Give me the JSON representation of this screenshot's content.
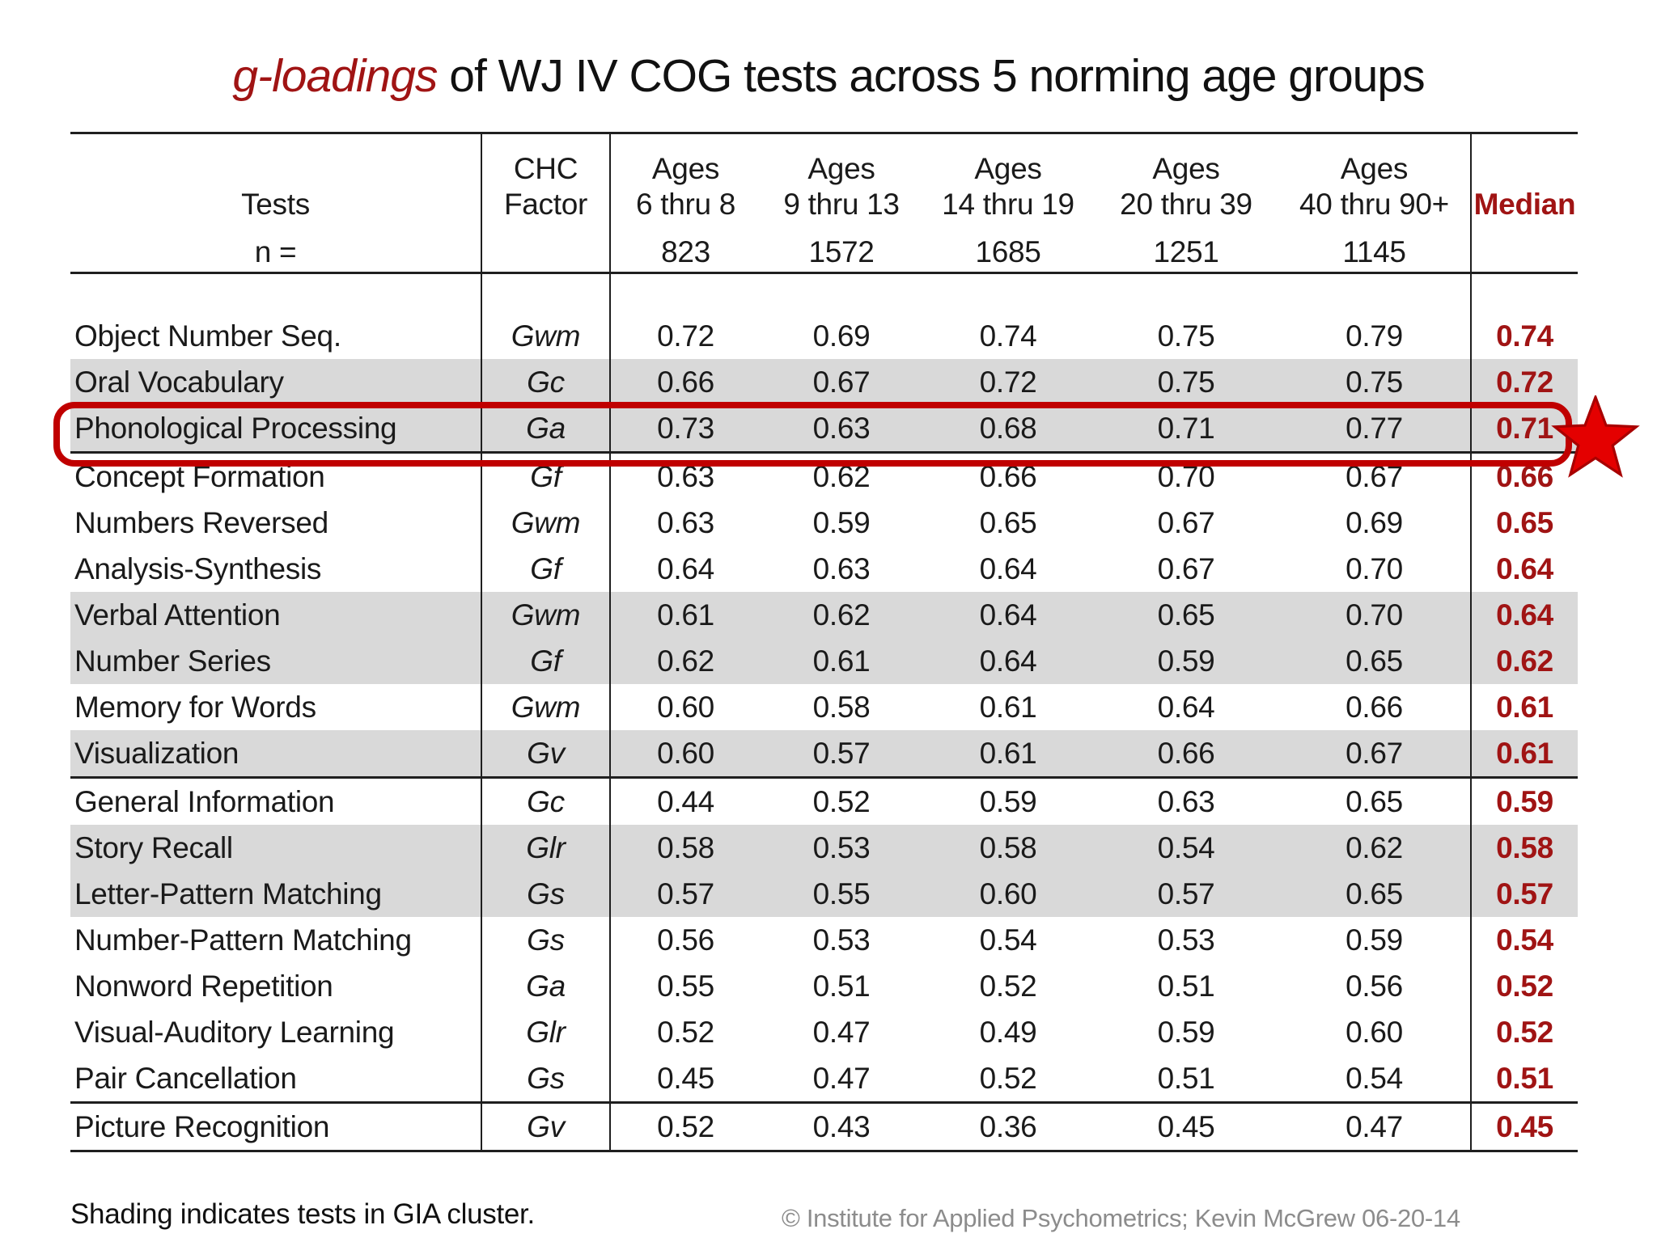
{
  "title": {
    "highlight": "g-loadings",
    "rest": " of WJ IV COG tests across 5 norming age groups"
  },
  "colors": {
    "accent_red": "#A01414",
    "box_red": "#C00000",
    "star_red": "#E40000",
    "row_shading": "#D9D9D9",
    "credit_gray": "#8C8C8C",
    "line_black": "#1F1F1F"
  },
  "table": {
    "header": {
      "tests_label": "Tests",
      "n_label": "n =",
      "chc_line1": "CHC",
      "chc_line2": "Factor",
      "age_label": "Ages",
      "age_groups": [
        {
          "range": "6 thru 8",
          "n": "823"
        },
        {
          "range": "9 thru 13",
          "n": "1572"
        },
        {
          "range": "14 thru 19",
          "n": "1685"
        },
        {
          "range": "20 thru 39",
          "n": "1251"
        },
        {
          "range": "40 thru 90+",
          "n": "1145"
        }
      ],
      "median_label": "Median"
    },
    "rows": [
      {
        "test": "Object Number Seq.",
        "factor": "Gwm",
        "values": [
          "0.72",
          "0.69",
          "0.74",
          "0.75",
          "0.79"
        ],
        "median": "0.74",
        "shaded": false,
        "highlighted": false,
        "section_end": false
      },
      {
        "test": "Oral Vocabulary",
        "factor": "Gc",
        "values": [
          "0.66",
          "0.67",
          "0.72",
          "0.75",
          "0.75"
        ],
        "median": "0.72",
        "shaded": true,
        "highlighted": false,
        "section_end": false
      },
      {
        "test": "Phonological Processing",
        "factor": "Ga",
        "values": [
          "0.73",
          "0.63",
          "0.68",
          "0.71",
          "0.77"
        ],
        "median": "0.71",
        "shaded": true,
        "highlighted": true,
        "section_end": true
      },
      {
        "test": "Concept Formation",
        "factor": "Gf",
        "values": [
          "0.63",
          "0.62",
          "0.66",
          "0.70",
          "0.67"
        ],
        "median": "0.66",
        "shaded": false,
        "highlighted": false,
        "section_end": false
      },
      {
        "test": "Numbers Reversed",
        "factor": "Gwm",
        "values": [
          "0.63",
          "0.59",
          "0.65",
          "0.67",
          "0.69"
        ],
        "median": "0.65",
        "shaded": false,
        "highlighted": false,
        "section_end": false
      },
      {
        "test": "Analysis-Synthesis",
        "factor": "Gf",
        "values": [
          "0.64",
          "0.63",
          "0.64",
          "0.67",
          "0.70"
        ],
        "median": "0.64",
        "shaded": false,
        "highlighted": false,
        "section_end": false
      },
      {
        "test": "Verbal Attention",
        "factor": "Gwm",
        "values": [
          "0.61",
          "0.62",
          "0.64",
          "0.65",
          "0.70"
        ],
        "median": "0.64",
        "shaded": true,
        "highlighted": false,
        "section_end": false
      },
      {
        "test": "Number Series",
        "factor": "Gf",
        "values": [
          "0.62",
          "0.61",
          "0.64",
          "0.59",
          "0.65"
        ],
        "median": "0.62",
        "shaded": true,
        "highlighted": false,
        "section_end": false
      },
      {
        "test": "Memory for Words",
        "factor": "Gwm",
        "values": [
          "0.60",
          "0.58",
          "0.61",
          "0.64",
          "0.66"
        ],
        "median": "0.61",
        "shaded": false,
        "highlighted": false,
        "section_end": false
      },
      {
        "test": "Visualization",
        "factor": "Gv",
        "values": [
          "0.60",
          "0.57",
          "0.61",
          "0.66",
          "0.67"
        ],
        "median": "0.61",
        "shaded": true,
        "highlighted": false,
        "section_end": true
      },
      {
        "test": "General Information",
        "factor": "Gc",
        "values": [
          "0.44",
          "0.52",
          "0.59",
          "0.63",
          "0.65"
        ],
        "median": "0.59",
        "shaded": false,
        "highlighted": false,
        "section_end": false
      },
      {
        "test": "Story Recall",
        "factor": "Glr",
        "values": [
          "0.58",
          "0.53",
          "0.58",
          "0.54",
          "0.62"
        ],
        "median": "0.58",
        "shaded": true,
        "highlighted": false,
        "section_end": false
      },
      {
        "test": "Letter-Pattern Matching",
        "factor": "Gs",
        "values": [
          "0.57",
          "0.55",
          "0.60",
          "0.57",
          "0.65"
        ],
        "median": "0.57",
        "shaded": true,
        "highlighted": false,
        "section_end": false
      },
      {
        "test": "Number-Pattern Matching",
        "factor": "Gs",
        "values": [
          "0.56",
          "0.53",
          "0.54",
          "0.53",
          "0.59"
        ],
        "median": "0.54",
        "shaded": false,
        "highlighted": false,
        "section_end": false
      },
      {
        "test": "Nonword Repetition",
        "factor": "Ga",
        "values": [
          "0.55",
          "0.51",
          "0.52",
          "0.51",
          "0.56"
        ],
        "median": "0.52",
        "shaded": false,
        "highlighted": false,
        "section_end": false
      },
      {
        "test": "Visual-Auditory Learning",
        "factor": "Glr",
        "values": [
          "0.52",
          "0.47",
          "0.49",
          "0.59",
          "0.60"
        ],
        "median": "0.52",
        "shaded": false,
        "highlighted": false,
        "section_end": false
      },
      {
        "test": "Pair Cancellation",
        "factor": "Gs",
        "values": [
          "0.45",
          "0.47",
          "0.52",
          "0.51",
          "0.54"
        ],
        "median": "0.51",
        "shaded": false,
        "highlighted": false,
        "section_end": true
      },
      {
        "test": "Picture Recognition",
        "factor": "Gv",
        "values": [
          "0.52",
          "0.43",
          "0.36",
          "0.45",
          "0.47"
        ],
        "median": "0.45",
        "shaded": false,
        "highlighted": false,
        "section_end": false
      }
    ]
  },
  "footer": {
    "note": "Shading indicates tests in GIA cluster.",
    "credit": "© Institute for Applied Psychometrics;  Kevin McGrew 06-20-14"
  }
}
